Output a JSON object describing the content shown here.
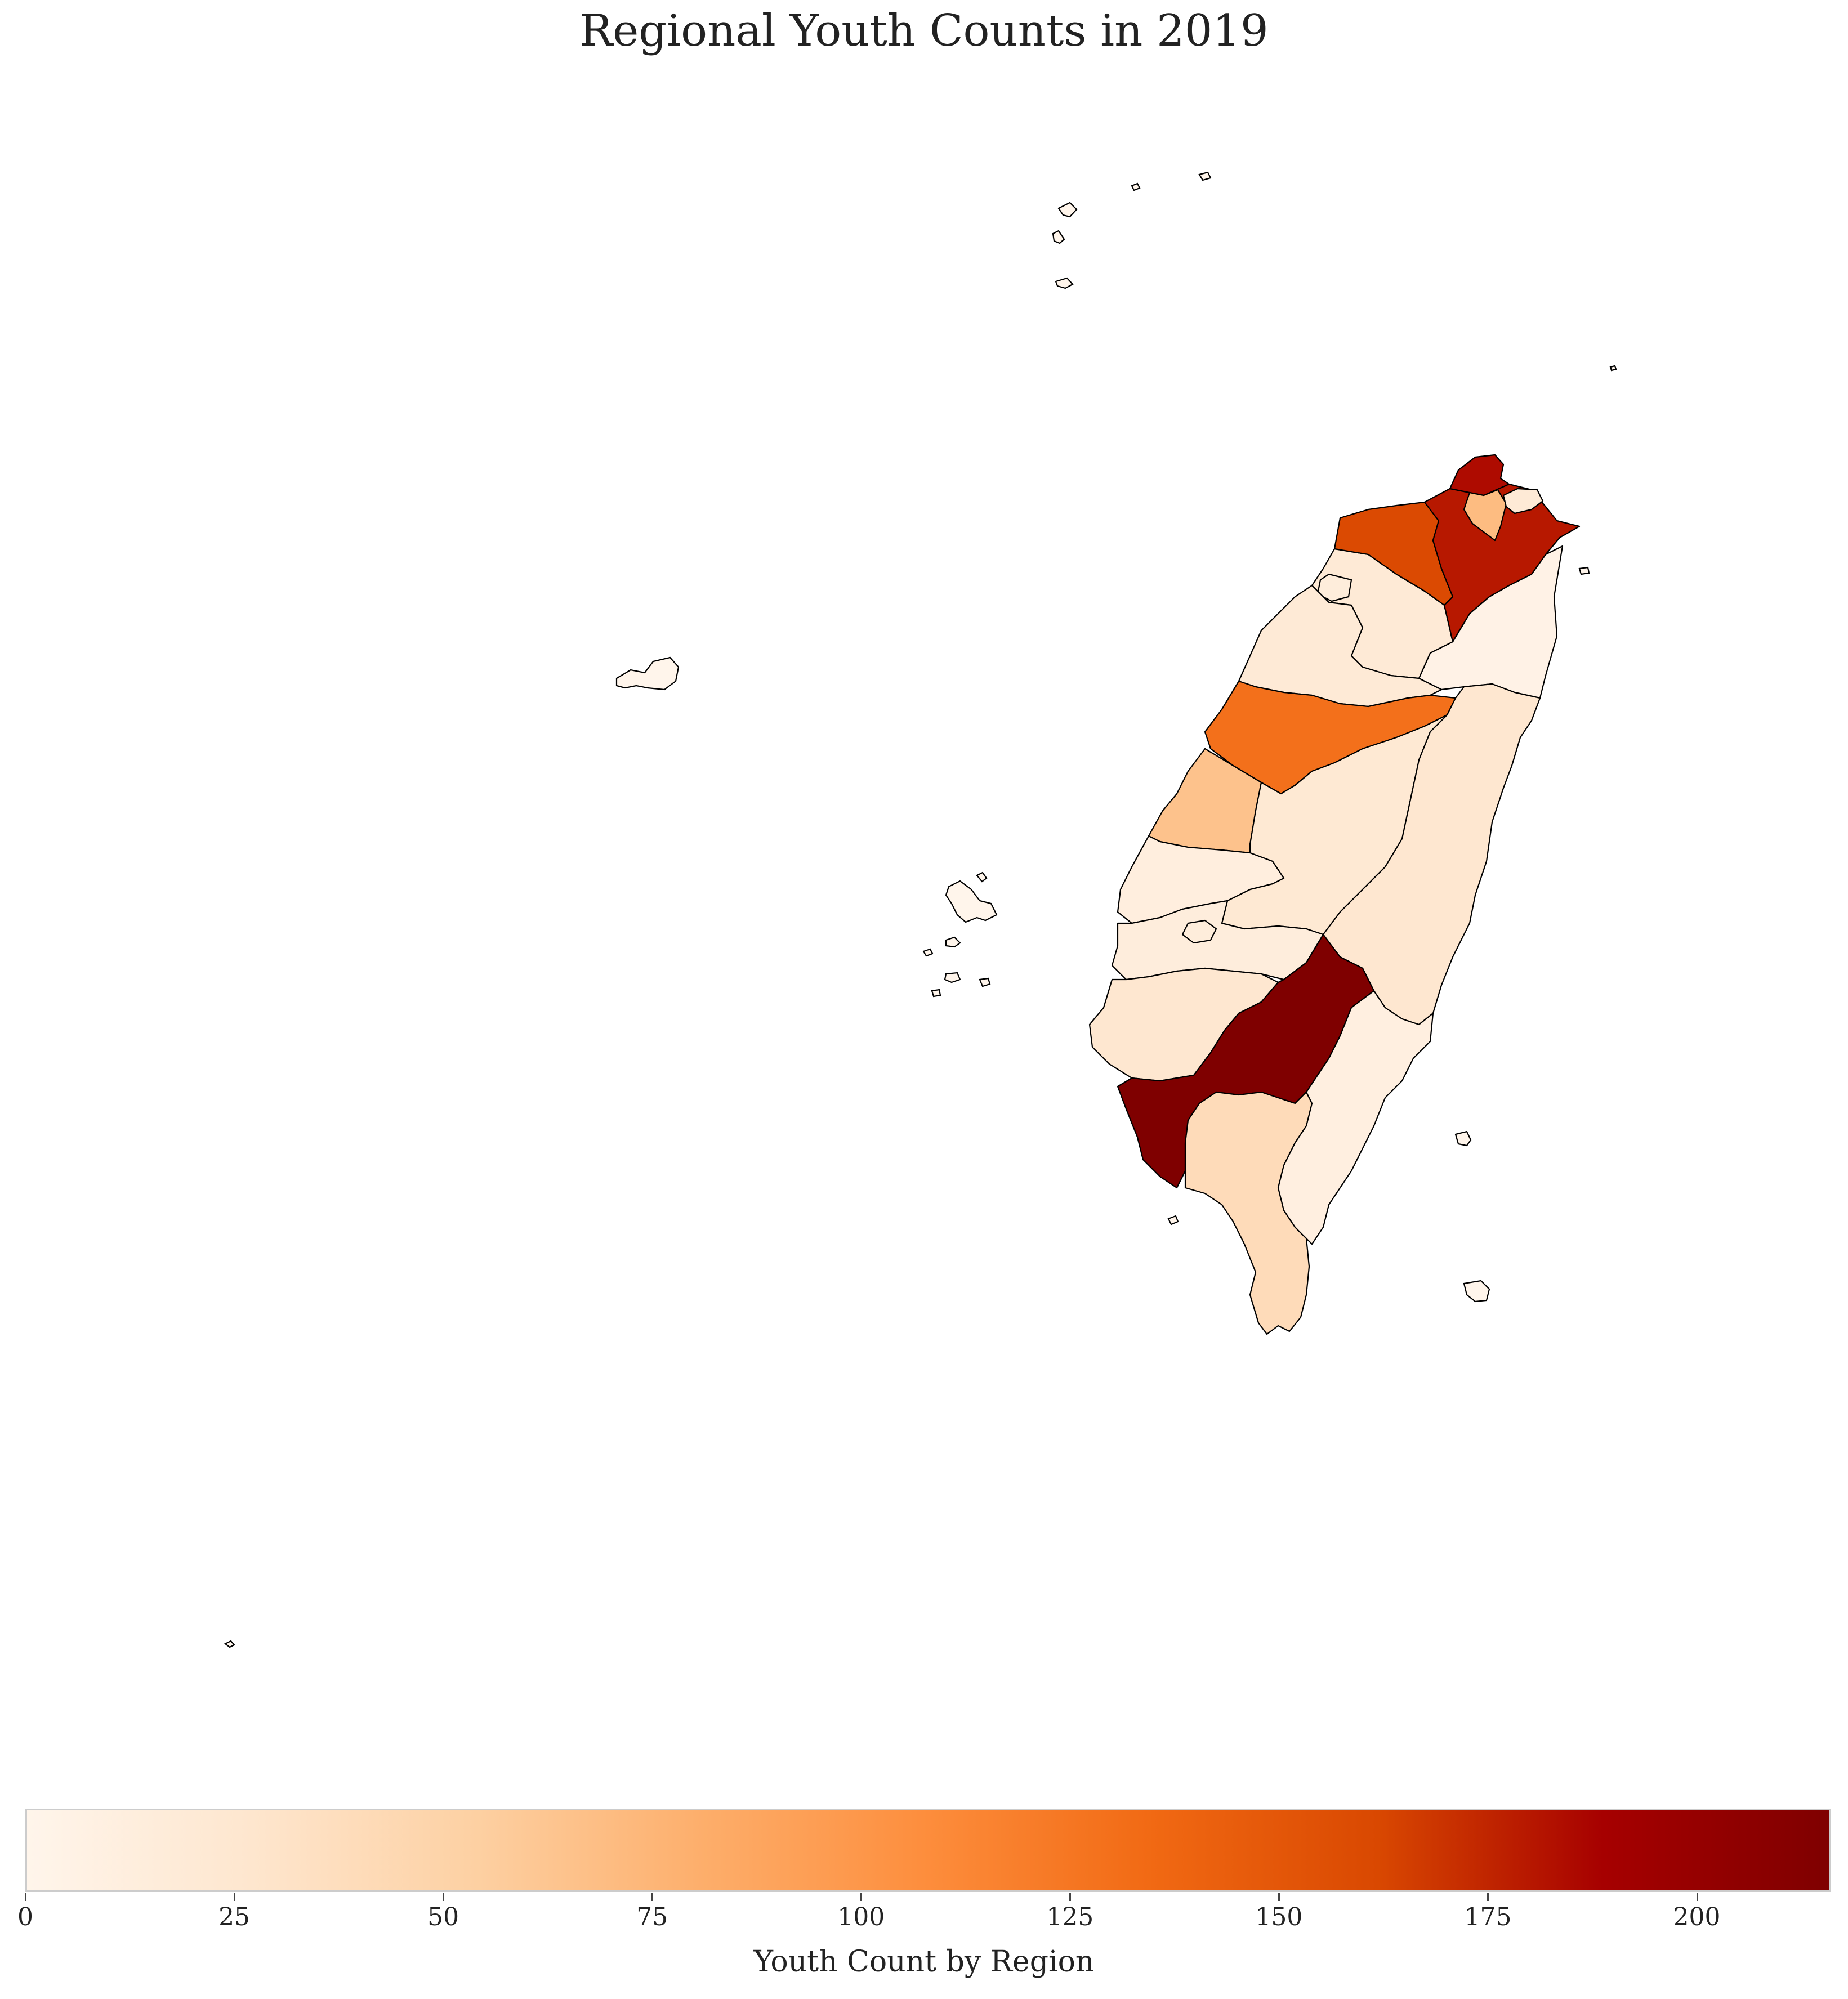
{
  "title": "Regional Youth Counts in 2019",
  "colorbar": {
    "label": "Youth Count by Region",
    "min": 0,
    "max": 216,
    "ticks": [
      "0",
      "25",
      "50",
      "75",
      "100",
      "125",
      "150",
      "175",
      "200"
    ],
    "colormap": "OrRd-like",
    "colors": [
      "#fff5eb",
      "#fee6ce",
      "#fdd0a2",
      "#fdae6b",
      "#fd8d3c",
      "#f16913",
      "#d94801",
      "#a60000",
      "#7f0000"
    ]
  },
  "chart_data": {
    "type": "choropleth",
    "title": "Regional Youth Counts in 2019",
    "legend_label": "Youth Count by Region",
    "range": [
      0,
      216
    ],
    "regions": [
      {
        "id": "north-tip",
        "value": 185
      },
      {
        "id": "northeast-large",
        "value": 180
      },
      {
        "id": "north-inner",
        "value": 70
      },
      {
        "id": "north-small-east",
        "value": 20
      },
      {
        "id": "northwest",
        "value": 160
      },
      {
        "id": "hsinchu-city",
        "value": 15
      },
      {
        "id": "hsinchu-county",
        "value": 20
      },
      {
        "id": "miaoli",
        "value": 20
      },
      {
        "id": "yilan",
        "value": 5
      },
      {
        "id": "taichung",
        "value": 130
      },
      {
        "id": "changhua",
        "value": 65
      },
      {
        "id": "nantou",
        "value": 22
      },
      {
        "id": "hualien",
        "value": 25
      },
      {
        "id": "yunlin",
        "value": 12
      },
      {
        "id": "chiayi-county",
        "value": 14
      },
      {
        "id": "chiayi-city",
        "value": 15
      },
      {
        "id": "tainan",
        "value": 25
      },
      {
        "id": "kaohsiung",
        "value": 216
      },
      {
        "id": "pingtung",
        "value": 40
      },
      {
        "id": "taitung",
        "value": 10
      },
      {
        "id": "penghu",
        "value": 3
      },
      {
        "id": "offshore-islands",
        "value": 3
      }
    ]
  }
}
